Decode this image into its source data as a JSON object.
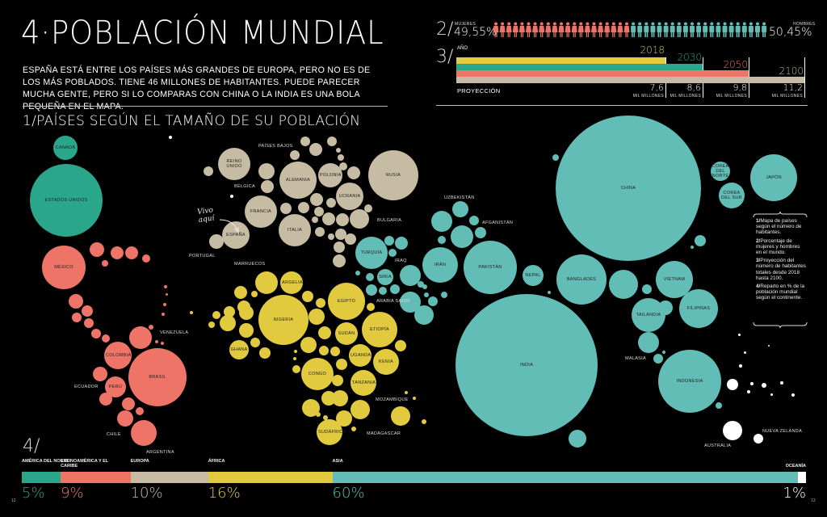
{
  "header": {
    "title": "4·POBLACIÓN MUNDIAL",
    "intro": "ESPAÑA ESTÁ ENTRE LOS PAÍSES MÁS GRANDES DE EUROPA, PERO NO ES DE LOS MÁS POBLADOS. TIENE 46 MILLONES DE HABITANTES. PUEDE PARECER MUCHA GENTE, PERO SI LO COMPARAS CON CHINA O LA INDIA ES UNA BOLA PEQUEÑA EN EL MAPA.",
    "section1": "1/PAÍSES SEGÚN EL TAMAÑO DE SU POBLACIÓN"
  },
  "colors": {
    "north_america": "#2aa68b",
    "latin_america": "#ef7468",
    "europe": "#c6bca3",
    "africa": "#e2ca3f",
    "asia": "#62bdb6",
    "oceania": "#ffffff"
  },
  "sex": {
    "num": "2/",
    "women_label": "MUJERES",
    "women_pct": "49,55%",
    "men_label": "HOMBRES",
    "men_pct": "50,45%",
    "icons": "person-icon"
  },
  "projection": {
    "num": "3/",
    "year_label": "AÑO",
    "footer_label": "PROYECCIÓN",
    "unit": "MIL MILLONES",
    "years": [
      "2018",
      "2030",
      "2050",
      "2100"
    ],
    "values": [
      "7,6",
      "8,6",
      "9,8",
      "11,2"
    ]
  },
  "map": {
    "annotation": "Vivo aquí",
    "countries": [
      "CANADÁ",
      "ESTADOS UNIDOS",
      "MÉXICO",
      "VENEZUELA",
      "COLOMBIA",
      "BRASIL",
      "ECUADOR",
      "PERÚ",
      "CHILE",
      "ARGENTINA",
      "REINO UNIDO",
      "PAÍSES BAJOS",
      "BÉLGICA",
      "ALEMANIA",
      "POLONIA",
      "RUSIA",
      "UCRANIA",
      "FRANCIA",
      "ITALIA",
      "ESPAÑA",
      "PORTUGAL",
      "BULGARIA",
      "MARRUECOS",
      "ARGELIA",
      "NIGERIA",
      "EGIPTO",
      "SUDÁN",
      "ETIOPÍA",
      "UGANDA",
      "KENIA",
      "CONGO",
      "TANZANIA",
      "MOZAMBIQUE",
      "MADAGASCAR",
      "SUDÁFRICA",
      "GHANA",
      "TURQUÍA",
      "SIRIA",
      "IRAQ",
      "ARABIA SAUDÍ",
      "IRÁN",
      "UZBEKISTÁN",
      "AFGANISTÁN",
      "PAKISTÁN",
      "NEPAL",
      "CHINA",
      "INDIA",
      "JAPÓN",
      "COREA DEL NORTE",
      "COREA DEL SUR",
      "BANGLADÉS",
      "VIETNAM",
      "TAILANDIA",
      "FILIPINAS",
      "MALASIA",
      "INDONESIA",
      "AUSTRALIA",
      "NUEVA ZELANDA"
    ]
  },
  "legend": [
    {
      "n": "1/",
      "t": "Mapa de países según el número de habitantes."
    },
    {
      "n": "2/",
      "t": "Porcentaje de mujeres y hombres en el mundo."
    },
    {
      "n": "3/",
      "t": "Proyección del número de habitantes totales desde 2018 hasta 2100."
    },
    {
      "n": "4/",
      "t": "Reparto en % de la población mundial según el continente."
    }
  ],
  "distribution": {
    "num": "4/",
    "continents": [
      {
        "name": "AMÉRICA DEL NORTE",
        "pct": "5%"
      },
      {
        "name": "LATINOAMÉRICA Y EL CARIBE",
        "pct": "9%"
      },
      {
        "name": "EUROPA",
        "pct": "10%"
      },
      {
        "name": "ÁFRICA",
        "pct": "16%"
      },
      {
        "name": "ASIA",
        "pct": "60%"
      },
      {
        "name": "OCEANÍA",
        "pct": "1%"
      }
    ]
  },
  "pages": {
    "left": "12",
    "right": "13"
  },
  "chart_data": [
    {
      "type": "bar",
      "title": "",
      "categories": [
        "MUJERES",
        "HOMBRES"
      ],
      "values": [
        49.55,
        50.45
      ],
      "unit": "%"
    },
    {
      "type": "bar",
      "orientation": "horizontal",
      "categories": [
        "2018",
        "2030",
        "2050",
        "2100"
      ],
      "values": [
        7.6,
        8.6,
        9.8,
        11.2
      ],
      "unit": "MIL MILLONES",
      "xlabel": "PROYECCIÓN",
      "ylabel": "AÑO"
    },
    {
      "type": "bar",
      "stacked": true,
      "categories": [
        "AMÉRICA DEL NORTE",
        "LATINOAMÉRICA Y EL CARIBE",
        "EUROPA",
        "ÁFRICA",
        "ASIA",
        "OCEANÍA"
      ],
      "values": [
        5,
        9,
        10,
        16,
        60,
        1
      ],
      "unit": "%"
    }
  ]
}
